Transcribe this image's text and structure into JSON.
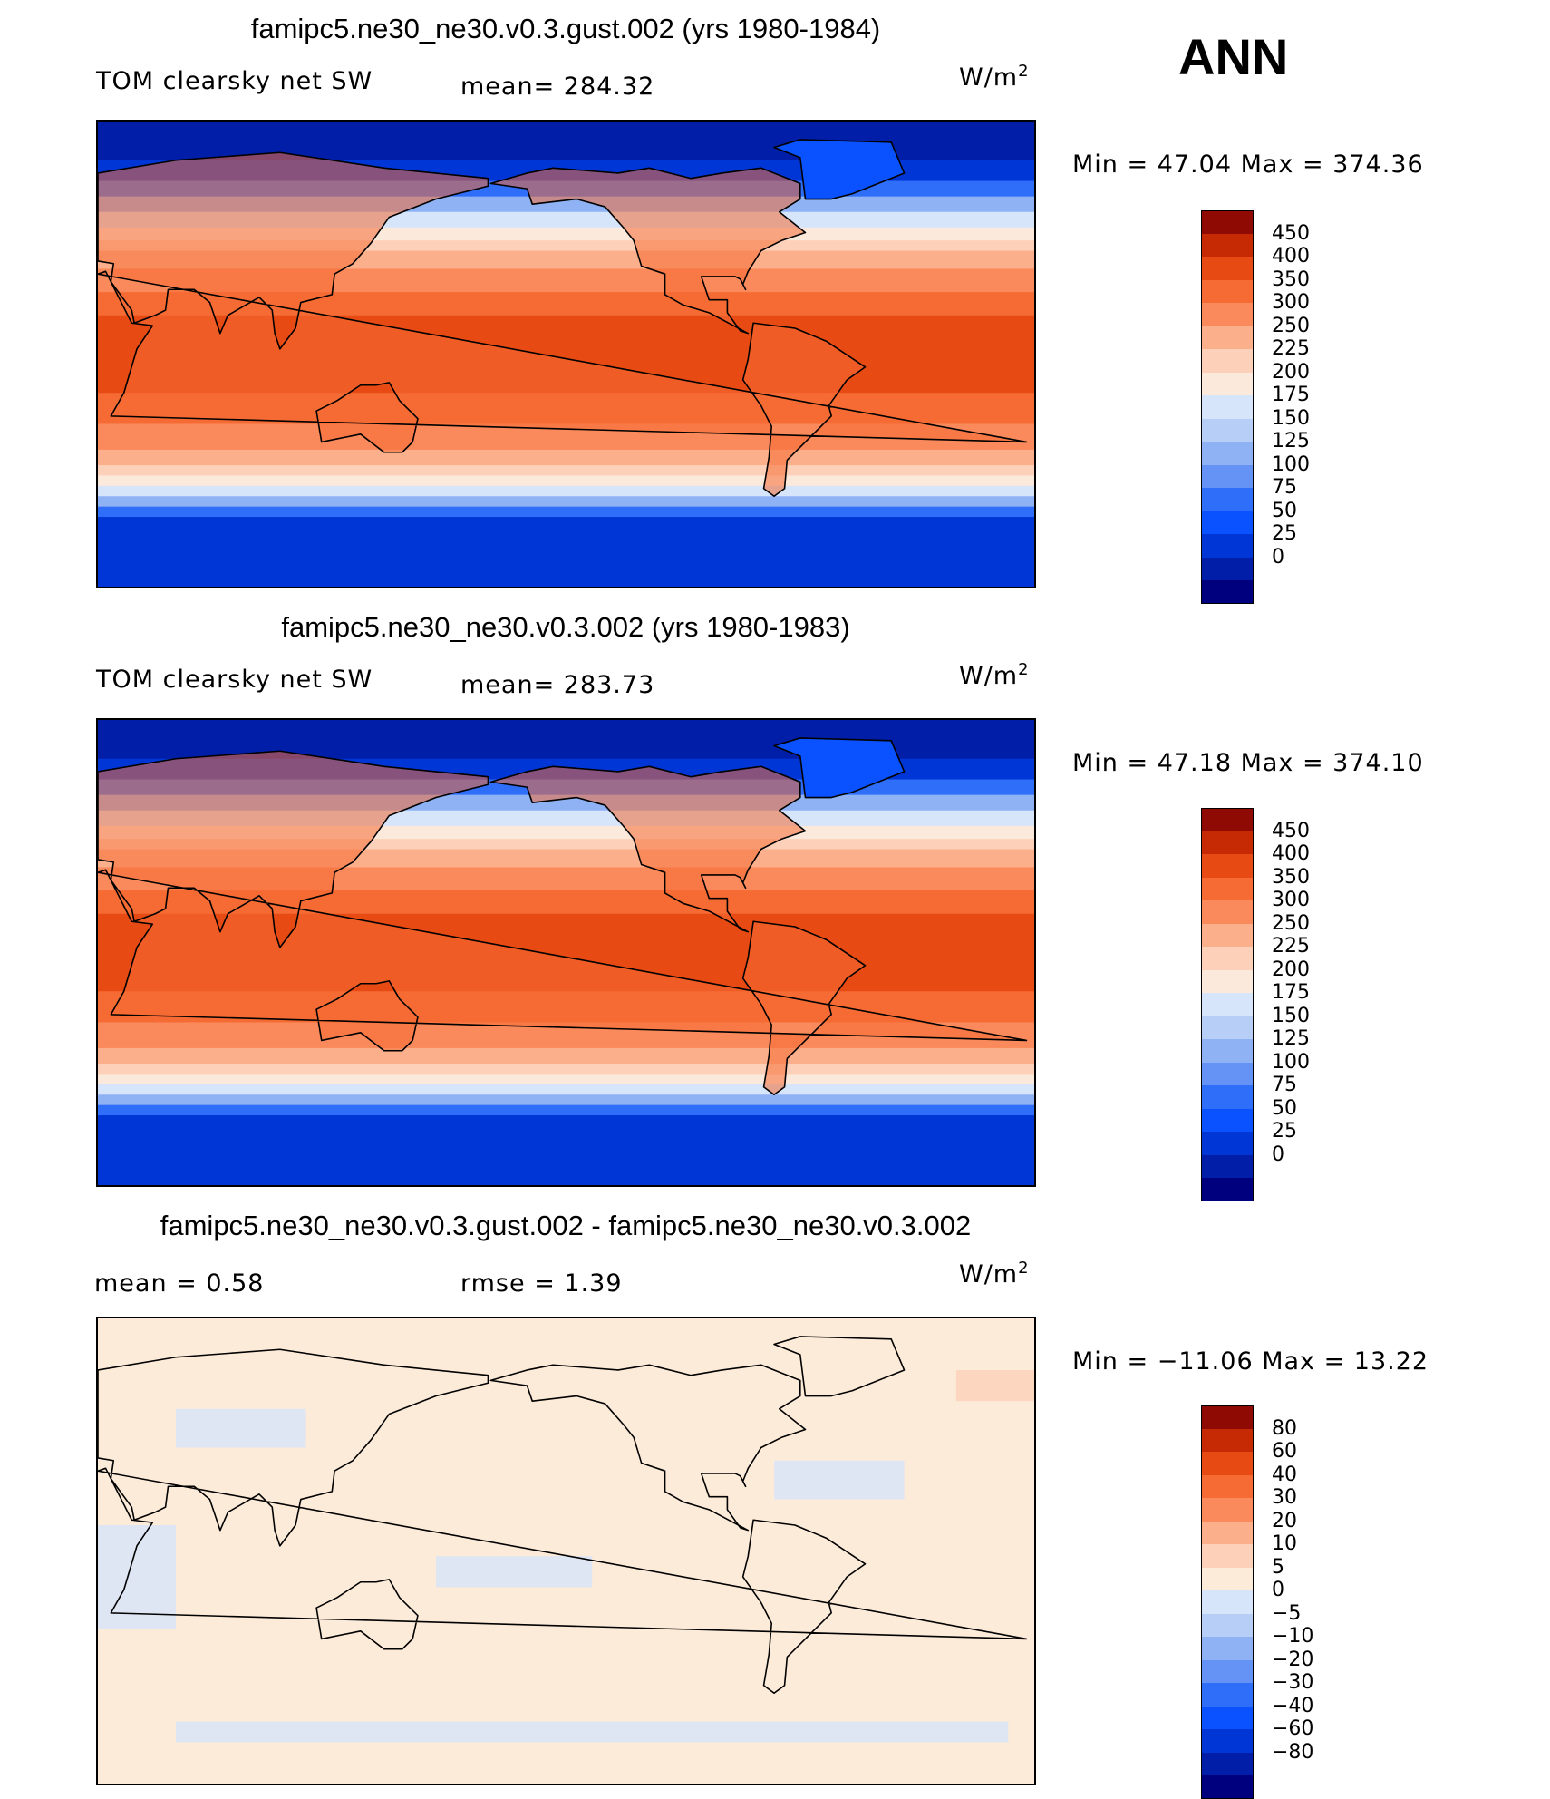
{
  "season": "ANN",
  "colors": {
    "abs_levels": [
      "#00007f",
      "#001ea8",
      "#0036d6",
      "#0a51ff",
      "#2f6ef8",
      "#6592f5",
      "#8fb2f4",
      "#b7cff7",
      "#d6e5fa",
      "#fbe9dc",
      "#fdd1b9",
      "#fcaf8b",
      "#fa8a5c",
      "#f66b34",
      "#e84a14",
      "#c62a04",
      "#8e0a02"
    ],
    "diff_levels": [
      "#00007f",
      "#001ea8",
      "#0036d6",
      "#0a51ff",
      "#2f6ef8",
      "#6592f5",
      "#8fb2f4",
      "#b7cff7",
      "#d6e5fa",
      "#fdebd9",
      "#fdd1b9",
      "#fcaf8b",
      "#fa8a5c",
      "#f66b34",
      "#e84a14",
      "#c62a04",
      "#8e0a02"
    ]
  },
  "panels": [
    {
      "title": "famipc5.ne30_ne30.v0.3.gust.002 (yrs 1980-1984)",
      "left_label": "TOM clearsky net SW",
      "center_label": "mean= 284.32",
      "units": "W/m",
      "units_sup": "2",
      "minmax": "Min =   47.04 Max = 374.36",
      "colorbar_ticks": [
        "450",
        "400",
        "350",
        "300",
        "250",
        "225",
        "200",
        "175",
        "150",
        "125",
        "100",
        "75",
        "50",
        "25",
        "0"
      ],
      "kind": "abs"
    },
    {
      "title": "famipc5.ne30_ne30.v0.3.002 (yrs 1980-1983)",
      "left_label": "TOM clearsky net SW",
      "center_label": "mean= 283.73",
      "units": "W/m",
      "units_sup": "2",
      "minmax": "Min =   47.18 Max = 374.10",
      "colorbar_ticks": [
        "450",
        "400",
        "350",
        "300",
        "250",
        "225",
        "200",
        "175",
        "150",
        "125",
        "100",
        "75",
        "50",
        "25",
        "0"
      ],
      "kind": "abs"
    },
    {
      "title": "famipc5.ne30_ne30.v0.3.gust.002 - famipc5.ne30_ne30.v0.3.002",
      "left_label": "mean =    0.58",
      "center_label": "rmse =    1.39",
      "units": "W/m",
      "units_sup": "2",
      "minmax": "Min = −11.06 Max =   13.22",
      "colorbar_ticks": [
        "80",
        "60",
        "40",
        "30",
        "20",
        "10",
        "5",
        "0",
        "−5",
        "−10",
        "−20",
        "−30",
        "−40",
        "−60",
        "−80"
      ],
      "kind": "diff"
    }
  ]
}
